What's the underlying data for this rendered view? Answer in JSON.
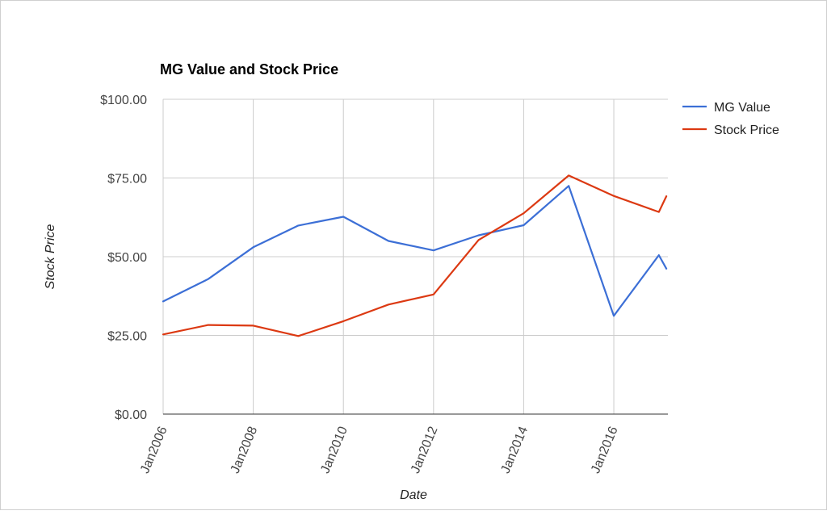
{
  "chart_data": {
    "type": "line",
    "title": "MG Value and Stock Price",
    "xlabel": "Date",
    "ylabel": "Stock Price",
    "x_tick_labels": [
      "Jan2006",
      "Jan2008",
      "Jan2010",
      "Jan2012",
      "Jan2014",
      "Jan2016"
    ],
    "x_tick_years": [
      2006,
      2008,
      2010,
      2012,
      2014,
      2016
    ],
    "x_range": [
      2006,
      2017.2
    ],
    "y_tick_labels": [
      "$0.00",
      "$25.00",
      "$50.00",
      "$75.00",
      "$100.00"
    ],
    "y_ticks": [
      0,
      25,
      50,
      75,
      100
    ],
    "ylim": [
      0,
      100
    ],
    "grid": true,
    "legend_position": "right",
    "series": [
      {
        "name": "MG Value",
        "color": "#3c6fd6",
        "points": [
          [
            "Jan2006",
            35.8
          ],
          [
            "Jan2007",
            42.9
          ],
          [
            "Jan2008",
            53.0
          ],
          [
            "Jan2009",
            59.9
          ],
          [
            "Jan2010",
            62.7
          ],
          [
            "Jan2011",
            55.0
          ],
          [
            "Jan2012",
            52.0
          ],
          [
            "Jan2013",
            56.8
          ],
          [
            "Jan2014",
            60.0
          ],
          [
            "Jan2015",
            72.5
          ],
          [
            "Jan2016",
            31.2
          ],
          [
            "Jan2017",
            50.5
          ],
          [
            "Mar2017",
            46.2
          ]
        ]
      },
      {
        "name": "Stock Price",
        "color": "#dc3912",
        "points": [
          [
            "Jan2006",
            25.3
          ],
          [
            "Jan2007",
            28.3
          ],
          [
            "Jan2008",
            28.1
          ],
          [
            "Jan2009",
            24.8
          ],
          [
            "Jan2010",
            29.5
          ],
          [
            "Jan2011",
            34.8
          ],
          [
            "Jan2012",
            38.0
          ],
          [
            "Jan2013",
            55.3
          ],
          [
            "Jan2014",
            63.8
          ],
          [
            "Jan2015",
            75.8
          ],
          [
            "Jan2016",
            69.3
          ],
          [
            "Jan2017",
            64.2
          ],
          [
            "Mar2017",
            69.2
          ]
        ]
      }
    ]
  }
}
